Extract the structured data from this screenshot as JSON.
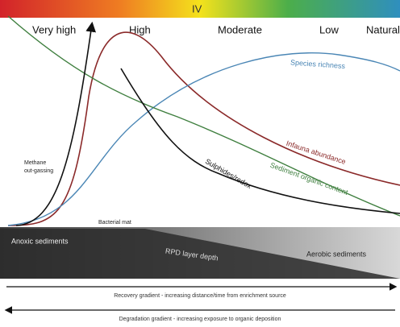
{
  "header": {
    "stage": "IV",
    "zones": [
      "Very high",
      "High",
      "Moderate",
      "Low",
      "Natural"
    ]
  },
  "curves": {
    "species": "Species richness",
    "infauna": "Infauna abundance",
    "organic": "Sediment organic content",
    "sulphides": "Sulphides/redox"
  },
  "annotations": {
    "methane": [
      "Methane",
      "out-gassing"
    ],
    "bacterial": "Bacterial mat",
    "anoxic": "Anoxic sediments",
    "rpd": "RPD layer depth",
    "aerobic": "Aerobic sediments"
  },
  "gradients": {
    "recovery": "Recovery gradient - increasing distance/time from enrichment source",
    "degradation": "Degradation gradient - increasing exposure to organic deposition"
  }
}
